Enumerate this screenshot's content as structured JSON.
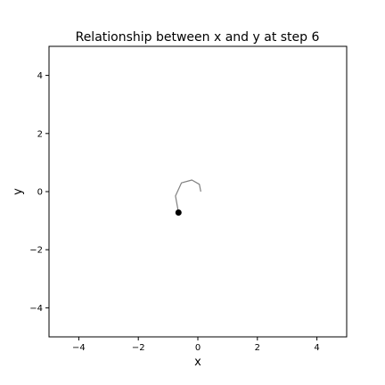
{
  "chart_data": {
    "type": "line",
    "title": "Relationship between x and y at step 6",
    "xlabel": "x",
    "ylabel": "y",
    "xlim": [
      -5,
      5
    ],
    "ylim": [
      -5,
      5
    ],
    "xticks": [
      -4,
      -2,
      0,
      2,
      4
    ],
    "yticks": [
      -4,
      -2,
      0,
      2,
      4
    ],
    "xtick_labels": [
      "−4",
      "−2",
      "0",
      "2",
      "4"
    ],
    "ytick_labels": [
      "−4",
      "−2",
      "0",
      "2",
      "4"
    ],
    "grid": false,
    "series": [
      {
        "color": "#808080",
        "x": [
          0.1,
          0.05,
          -0.2,
          -0.55,
          -0.75,
          -0.65
        ],
        "y": [
          0.0,
          0.25,
          0.4,
          0.3,
          -0.15,
          -0.72
        ]
      }
    ],
    "current_point": {
      "x": -0.65,
      "y": -0.72,
      "color": "#000000"
    }
  }
}
